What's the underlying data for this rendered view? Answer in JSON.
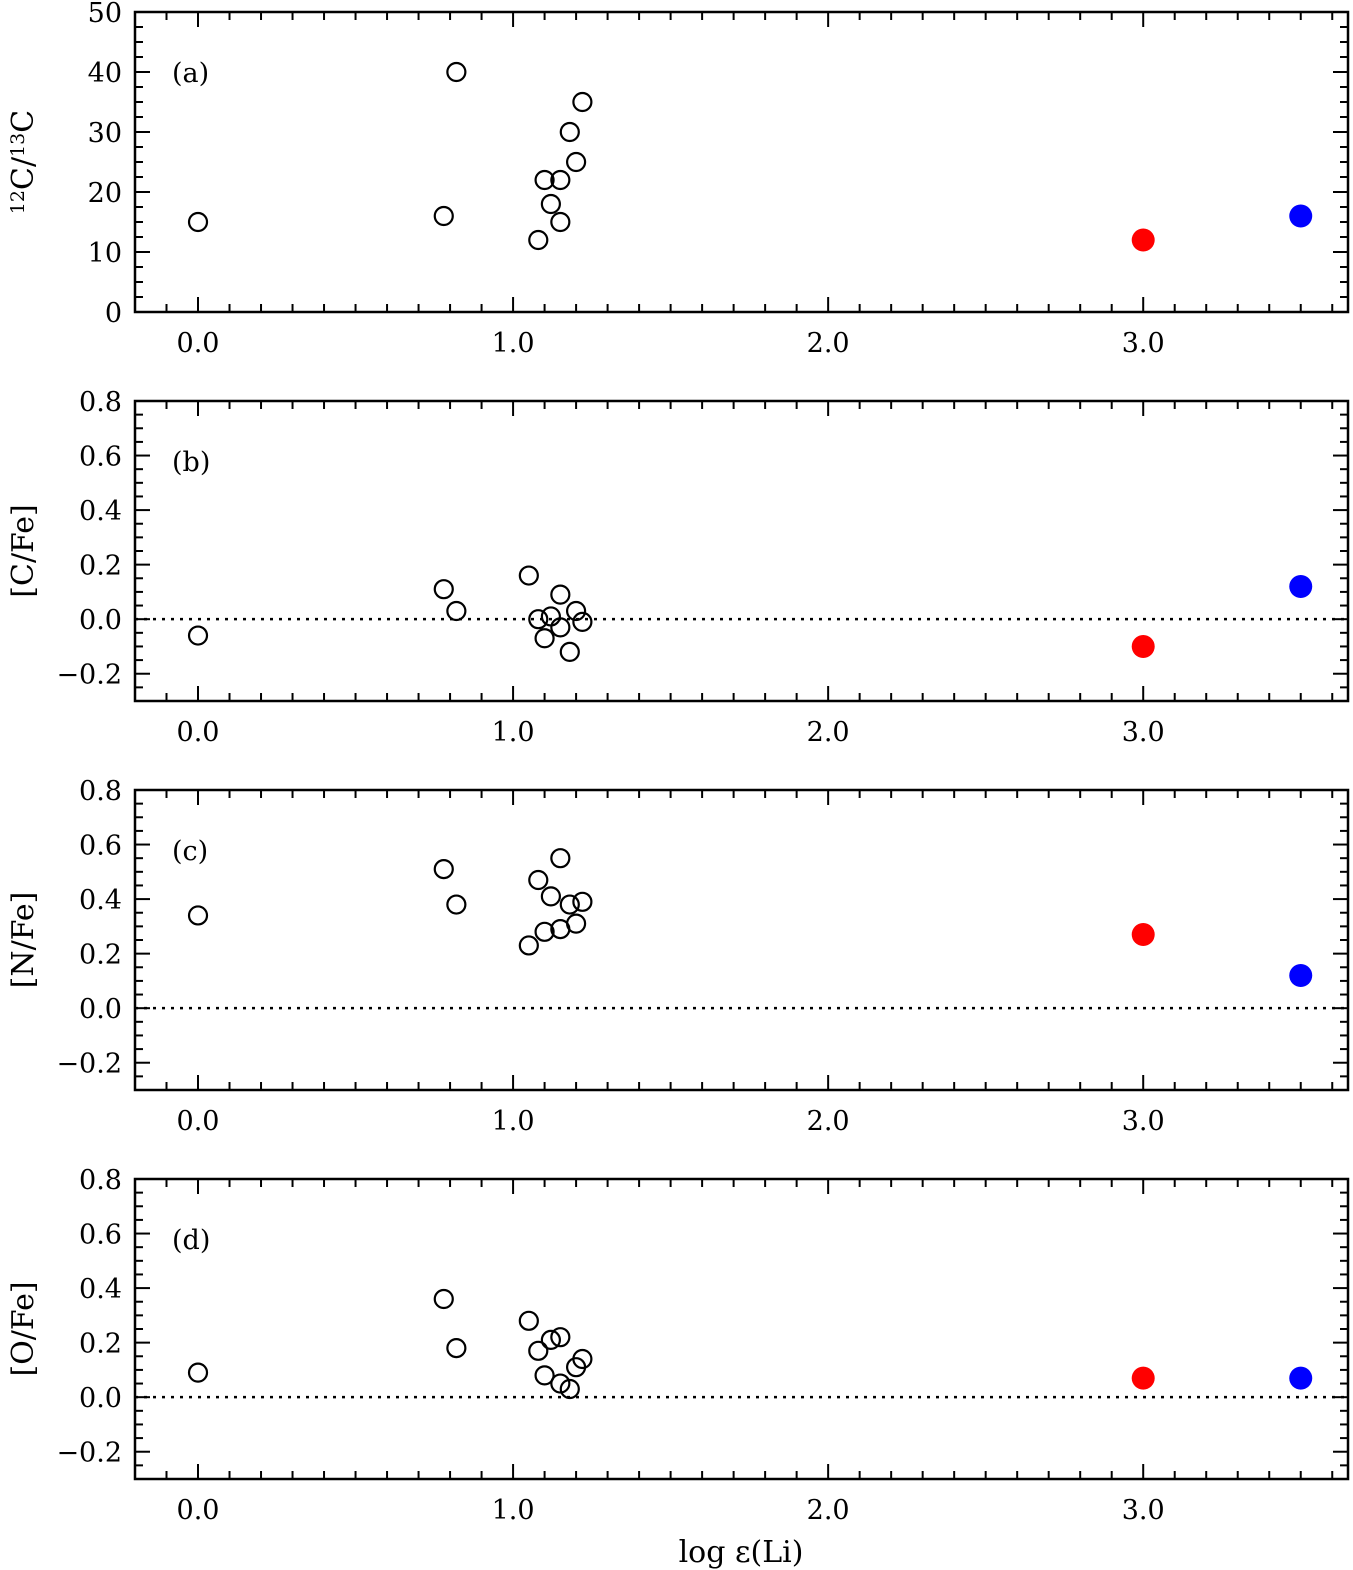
{
  "xlabel": "log ε(Li)",
  "colors": {
    "open": "#000000",
    "red": "#ff0000",
    "blue": "#0000ff"
  },
  "chart_data": [
    {
      "type": "scatter",
      "panel": "(a)",
      "ylabel": {
        "sup1": "12",
        "base1": "C/",
        "sup2": "13",
        "base2": "C"
      },
      "xlim": [
        -0.2,
        3.65
      ],
      "ylim": [
        0,
        50
      ],
      "yticks": [
        "0",
        "10",
        "20",
        "30",
        "40",
        "50"
      ],
      "yticks_values": [
        0,
        10,
        20,
        30,
        40,
        50
      ],
      "xticks": [
        "0.0",
        "1.0",
        "2.0",
        "3.0"
      ],
      "xticks_values": [
        0,
        1,
        2,
        3
      ],
      "reference_line": null,
      "series": [
        {
          "style": "open",
          "x": [
            0.0,
            0.78,
            0.82,
            1.08,
            1.1,
            1.12,
            1.15,
            1.15,
            1.18,
            1.2,
            1.22
          ],
          "y": [
            15,
            16,
            40,
            12,
            22,
            18,
            22,
            15,
            30,
            25,
            35
          ]
        },
        {
          "style": "red",
          "x": [
            3.0
          ],
          "y": [
            12
          ]
        },
        {
          "style": "blue",
          "x": [
            3.5
          ],
          "y": [
            16
          ]
        }
      ]
    },
    {
      "type": "scatter",
      "panel": "(b)",
      "ylabel": "[C/Fe]",
      "xlim": [
        -0.2,
        3.65
      ],
      "ylim": [
        -0.3,
        0.8
      ],
      "yticks": [
        "−0.2",
        "0.0",
        "0.2",
        "0.4",
        "0.6",
        "0.8"
      ],
      "yticks_values": [
        -0.2,
        0.0,
        0.2,
        0.4,
        0.6,
        0.8
      ],
      "xticks": [
        "0.0",
        "1.0",
        "2.0",
        "3.0"
      ],
      "xticks_values": [
        0,
        1,
        2,
        3
      ],
      "reference_line": 0.0,
      "series": [
        {
          "style": "open",
          "x": [
            0.0,
            0.78,
            0.82,
            1.05,
            1.08,
            1.1,
            1.12,
            1.15,
            1.15,
            1.18,
            1.2,
            1.22
          ],
          "y": [
            -0.06,
            0.11,
            0.03,
            0.16,
            0.0,
            -0.07,
            0.01,
            0.09,
            -0.03,
            -0.12,
            0.03,
            -0.01
          ]
        },
        {
          "style": "red",
          "x": [
            3.0
          ],
          "y": [
            -0.1
          ]
        },
        {
          "style": "blue",
          "x": [
            3.5
          ],
          "y": [
            0.12
          ]
        }
      ]
    },
    {
      "type": "scatter",
      "panel": "(c)",
      "ylabel": "[N/Fe]",
      "xlim": [
        -0.2,
        3.65
      ],
      "ylim": [
        -0.3,
        0.8
      ],
      "yticks": [
        "−0.2",
        "0.0",
        "0.2",
        "0.4",
        "0.6",
        "0.8"
      ],
      "yticks_values": [
        -0.2,
        0.0,
        0.2,
        0.4,
        0.6,
        0.8
      ],
      "xticks": [
        "0.0",
        "1.0",
        "2.0",
        "3.0"
      ],
      "xticks_values": [
        0,
        1,
        2,
        3
      ],
      "reference_line": 0.0,
      "series": [
        {
          "style": "open",
          "x": [
            0.0,
            0.78,
            0.82,
            1.05,
            1.08,
            1.1,
            1.12,
            1.15,
            1.15,
            1.18,
            1.2,
            1.22
          ],
          "y": [
            0.34,
            0.51,
            0.38,
            0.23,
            0.47,
            0.28,
            0.41,
            0.55,
            0.29,
            0.38,
            0.31,
            0.39
          ]
        },
        {
          "style": "red",
          "x": [
            3.0
          ],
          "y": [
            0.27
          ]
        },
        {
          "style": "blue",
          "x": [
            3.5
          ],
          "y": [
            0.12
          ]
        }
      ]
    },
    {
      "type": "scatter",
      "panel": "(d)",
      "ylabel": "[O/Fe]",
      "xlim": [
        -0.2,
        3.65
      ],
      "ylim": [
        -0.3,
        0.8
      ],
      "yticks": [
        "−0.2",
        "0.0",
        "0.2",
        "0.4",
        "0.6",
        "0.8"
      ],
      "yticks_values": [
        -0.2,
        0.0,
        0.2,
        0.4,
        0.6,
        0.8
      ],
      "xticks": [
        "0.0",
        "1.0",
        "2.0",
        "3.0"
      ],
      "xticks_values": [
        0,
        1,
        2,
        3
      ],
      "reference_line": 0.0,
      "series": [
        {
          "style": "open",
          "x": [
            0.0,
            0.78,
            0.82,
            1.05,
            1.08,
            1.1,
            1.12,
            1.15,
            1.15,
            1.18,
            1.2,
            1.22
          ],
          "y": [
            0.09,
            0.36,
            0.18,
            0.28,
            0.17,
            0.08,
            0.21,
            0.22,
            0.05,
            0.03,
            0.11,
            0.14
          ]
        },
        {
          "style": "red",
          "x": [
            3.0
          ],
          "y": [
            0.07
          ]
        },
        {
          "style": "blue",
          "x": [
            3.5
          ],
          "y": [
            0.07
          ]
        }
      ]
    }
  ]
}
